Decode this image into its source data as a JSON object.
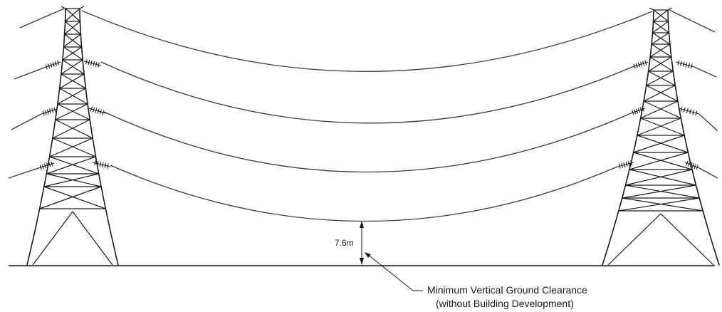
{
  "diagram": {
    "clearance_value": "7.6m",
    "callout_line1": "Minimum Vertical Ground Clearance",
    "callout_line2": "(without Building Development)"
  },
  "colors": {
    "line": "#1a1a1a",
    "wire": "#3a3a3a",
    "background": "#ffffff"
  },
  "icons": [
    "transmission-tower-icon",
    "insulator-icon",
    "arrow-icon"
  ]
}
